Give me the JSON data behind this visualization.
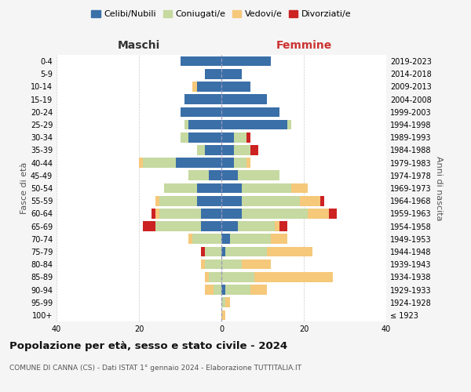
{
  "age_groups": [
    "100+",
    "95-99",
    "90-94",
    "85-89",
    "80-84",
    "75-79",
    "70-74",
    "65-69",
    "60-64",
    "55-59",
    "50-54",
    "45-49",
    "40-44",
    "35-39",
    "30-34",
    "25-29",
    "20-24",
    "15-19",
    "10-14",
    "5-9",
    "0-4"
  ],
  "birth_years": [
    "≤ 1923",
    "1924-1928",
    "1929-1933",
    "1934-1938",
    "1939-1943",
    "1944-1948",
    "1949-1953",
    "1954-1958",
    "1959-1963",
    "1964-1968",
    "1969-1973",
    "1974-1978",
    "1979-1983",
    "1984-1988",
    "1989-1993",
    "1994-1998",
    "1999-2003",
    "2004-2008",
    "2009-2013",
    "2014-2018",
    "2019-2023"
  ],
  "colors": {
    "celibi": "#3a6fa8",
    "coniugati": "#c5d9a0",
    "vedovi": "#f5c87a",
    "divorziati": "#cc2222"
  },
  "maschi": {
    "celibi": [
      0,
      0,
      0,
      0,
      0,
      0,
      0,
      5,
      5,
      6,
      6,
      3,
      11,
      4,
      8,
      8,
      10,
      9,
      6,
      4,
      10
    ],
    "coniugati": [
      0,
      0,
      2,
      3,
      4,
      4,
      7,
      11,
      10,
      9,
      8,
      5,
      8,
      2,
      2,
      1,
      0,
      0,
      0,
      0,
      0
    ],
    "vedovi": [
      0,
      0,
      2,
      1,
      1,
      0,
      1,
      0,
      1,
      1,
      0,
      0,
      1,
      0,
      0,
      0,
      0,
      0,
      1,
      0,
      0
    ],
    "divorziati": [
      0,
      0,
      0,
      0,
      0,
      1,
      0,
      3,
      1,
      0,
      0,
      0,
      0,
      0,
      0,
      0,
      0,
      0,
      0,
      0,
      0
    ]
  },
  "femmine": {
    "celibi": [
      0,
      0,
      1,
      0,
      0,
      1,
      2,
      4,
      5,
      5,
      5,
      4,
      3,
      3,
      3,
      16,
      14,
      11,
      7,
      5,
      12
    ],
    "coniugati": [
      0,
      1,
      6,
      8,
      5,
      10,
      10,
      9,
      16,
      14,
      12,
      10,
      3,
      4,
      3,
      1,
      0,
      0,
      0,
      0,
      0
    ],
    "vedovi": [
      1,
      1,
      4,
      19,
      7,
      11,
      4,
      1,
      5,
      5,
      4,
      0,
      1,
      0,
      0,
      0,
      0,
      0,
      0,
      0,
      0
    ],
    "divorziati": [
      0,
      0,
      0,
      0,
      0,
      0,
      0,
      2,
      2,
      1,
      0,
      0,
      0,
      2,
      1,
      0,
      0,
      0,
      0,
      0,
      0
    ]
  },
  "title": "Popolazione per età, sesso e stato civile - 2024",
  "subtitle": "COMUNE DI CANNA (CS) - Dati ISTAT 1° gennaio 2024 - Elaborazione TUTTITALIA.IT",
  "xlabel_left": "Maschi",
  "xlabel_right": "Femmine",
  "ylabel_left": "Fasce di età",
  "ylabel_right": "Anni di nascita",
  "xlim": 40,
  "bg_color": "#f5f5f5",
  "plot_bg": "#ffffff",
  "legend_labels": [
    "Celibi/Nubili",
    "Coniugati/e",
    "Vedovi/e",
    "Divorziati/e"
  ]
}
